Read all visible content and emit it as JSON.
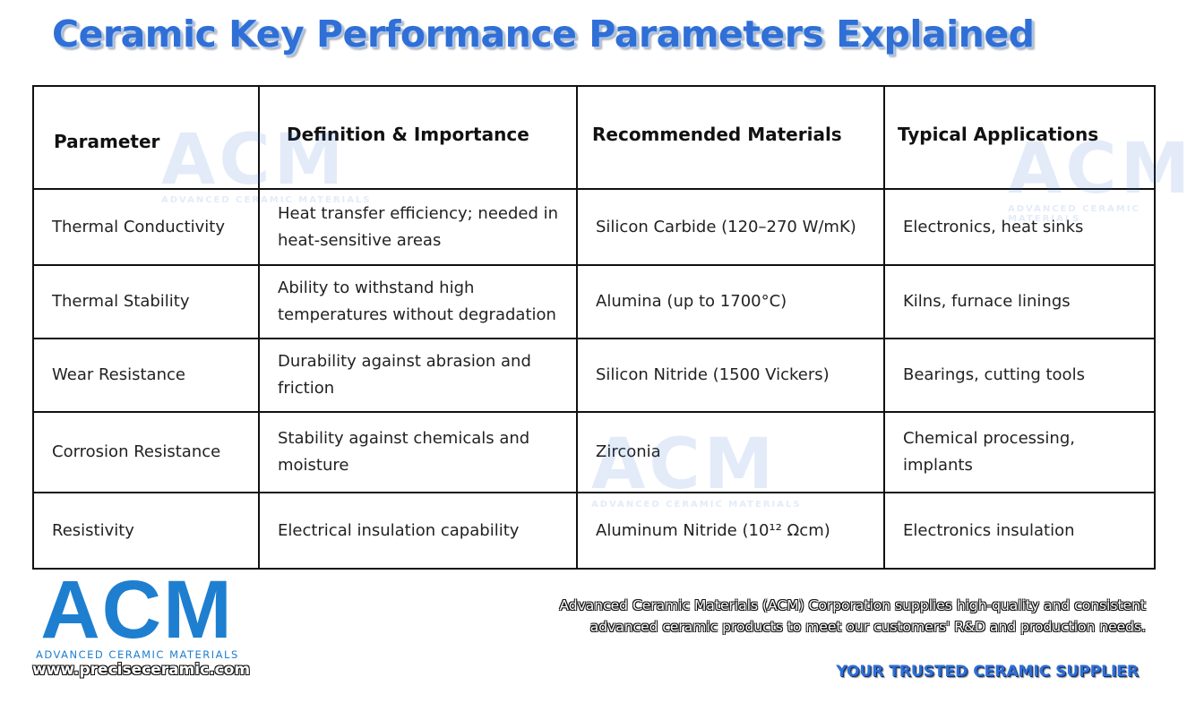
{
  "title": "Ceramic Key Performance Parameters Explained",
  "table": {
    "headers": [
      "Parameter",
      "Definition & Importance",
      "Recommended Materials",
      "Typical Applications"
    ],
    "rows": [
      [
        "Thermal Conductivity",
        "Heat transfer efficiency; needed in heat-sensitive areas",
        "Silicon Carbide (120–270 W/mK)",
        "Electronics, heat sinks"
      ],
      [
        "Thermal Stability",
        "Ability to withstand high temperatures without degradation",
        "Alumina (up to 1700°C)",
        "Kilns, furnace linings"
      ],
      [
        "Wear Resistance",
        "Durability against abrasion and friction",
        "Silicon Nitride (1500 Vickers)",
        "Bearings, cutting tools"
      ],
      [
        "Corrosion Resistance",
        "Stability against chemicals and moisture",
        "Zirconia",
        "Chemical processing, implants"
      ],
      [
        "Resistivity",
        "Electrical insulation capability",
        "Aluminum Nitride (10¹² Ωcm)",
        "Electronics insulation"
      ]
    ]
  },
  "watermark": {
    "letters": "ACM",
    "text": "ADVANCED CERAMIC MATERIALS"
  },
  "logo": {
    "letters": "ACM",
    "subtitle": "ADVANCED CERAMIC MATERIALS",
    "url": "www.preciseceramic.com"
  },
  "blurb": {
    "line1": "Advanced Ceramic Materials (ACM) Corporation supplies high-quality and consistent",
    "line2": "advanced ceramic products to meet our customers' R&D and production needs."
  },
  "tagline": "YOUR TRUSTED CERAMIC SUPPLIER",
  "colors": {
    "accent": "#2f6fd6",
    "logo_blue": "#1e7fd0",
    "border": "#111111"
  }
}
